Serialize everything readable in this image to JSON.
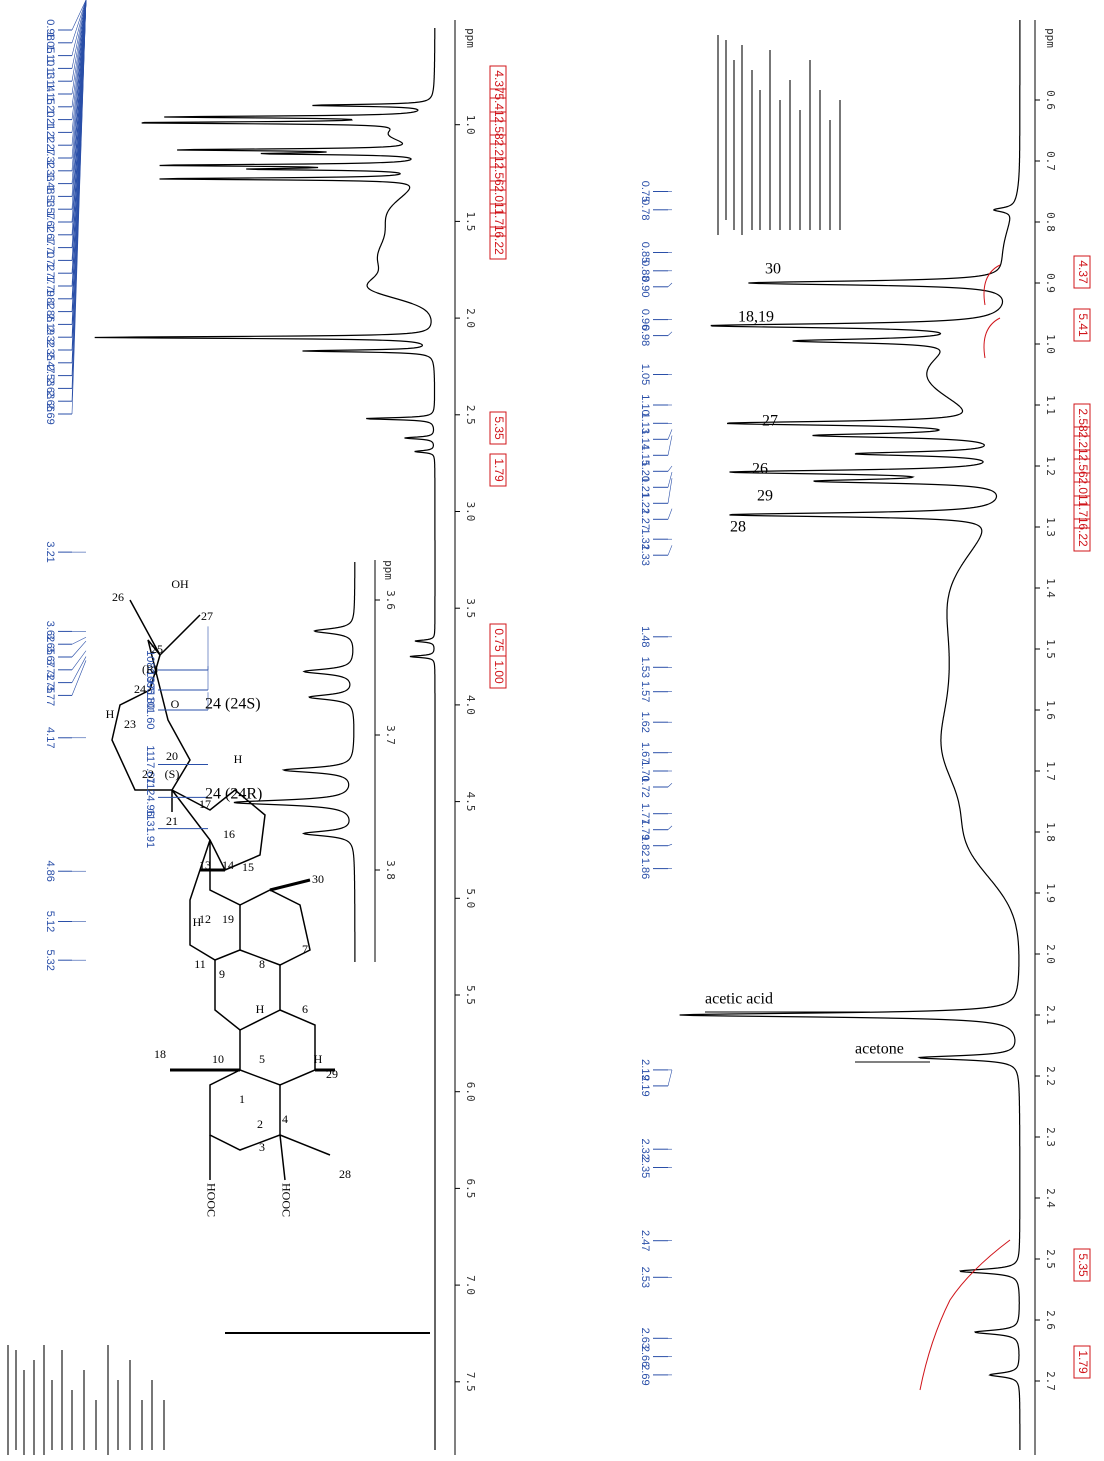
{
  "left_panel": {
    "axis_unit": "ppm",
    "ppm_ticks": [
      {
        "value": 1,
        "label": "1.0"
      },
      1.5,
      {
        "value": 2,
        "label": "2.0"
      },
      2.5,
      {
        "value": 3,
        "label": "3.0"
      },
      3.5,
      {
        "value": 4,
        "label": "4.0"
      },
      4.5,
      {
        "value": 5,
        "label": "5.0"
      },
      5.5,
      {
        "value": 6,
        "label": "6.0"
      },
      6.5,
      {
        "value": 7,
        "label": "7.0"
      },
      7.5
    ],
    "peak_list": [
      0.98,
      1.05,
      {
        "value": 1.1,
        "label": "1.10"
      },
      1.13,
      1.14,
      1.15,
      {
        "value": 1.2,
        "label": "1.20"
      },
      1.21,
      1.22,
      1.27,
      1.32,
      1.33,
      1.48,
      1.53,
      1.57,
      1.62,
      1.67,
      {
        "value": 1.7,
        "label": "1.70"
      },
      1.72,
      1.77,
      1.79,
      1.82,
      1.86,
      2.19,
      2.32,
      2.35,
      2.47,
      2.53,
      2.63,
      2.66,
      2.69,
      3.21,
      3.62,
      3.65,
      3.67,
      3.72,
      3.75,
      3.77,
      4.17,
      4.86,
      5.12,
      5.32
    ],
    "integrals": [
      "4.37",
      "5.41",
      "2.58",
      "2.21",
      "2.56",
      "2.01",
      "1.71",
      "6.22",
      "5.35",
      "1.79",
      "0.75",
      "1.00"
    ]
  },
  "inset": {
    "axis_unit": "ppm",
    "ppm_ticks": [
      3.6,
      3.7,
      3.8
    ],
    "hz_list": [
      1086.97,
      {
        "value": 1095.8,
        "label": "1095.80"
      },
      {
        "value": 1101.6,
        "label": "1101.60"
      },
      1117.67,
      1124.96,
      1131.91
    ],
    "annotations": [
      "24 (24S)",
      "24 (24R)"
    ]
  },
  "right_panel": {
    "axis_unit": "ppm",
    "ppm_ticks": [
      0.6,
      0.7,
      0.8,
      0.9,
      {
        "value": 1,
        "label": "1.0"
      },
      1.1,
      1.2,
      1.3,
      1.4,
      1.5,
      1.6,
      1.7,
      1.8,
      1.9,
      {
        "value": 2,
        "label": "2.0"
      },
      2.1,
      2.2,
      2.3,
      2.4,
      2.5,
      2.6,
      2.7
    ],
    "peak_list": [
      0.75,
      0.78,
      0.85,
      0.88,
      {
        "value": 0.9,
        "label": "0.90"
      },
      0.96,
      0.98,
      1.05,
      {
        "value": 1.1,
        "label": "1.10"
      },
      1.13,
      1.14,
      1.15,
      {
        "value": 1.2,
        "label": "1.20"
      },
      1.21,
      1.22,
      1.27,
      1.32,
      1.33,
      1.48,
      1.53,
      1.57,
      1.62,
      1.67,
      {
        "value": 1.7,
        "label": "1.70"
      },
      1.72,
      1.77,
      1.79,
      1.82,
      1.86,
      2.19,
      2.19,
      2.32,
      2.35,
      2.47,
      2.53,
      2.63,
      2.66,
      2.69
    ],
    "integrals": [
      "4.37",
      "5.41",
      "2.58",
      "2.21",
      "2.56",
      "2.01",
      "1.71",
      "6.22",
      "5.35",
      "1.79"
    ],
    "annotations": [
      "30",
      "18,19",
      "27",
      "26",
      "29",
      "28",
      "acetic acid",
      "acetone"
    ]
  },
  "molecule": {
    "labels": [
      "26",
      "OH",
      "27",
      "25",
      "(R)",
      "24",
      "O",
      "H",
      "23",
      "22",
      "20",
      "(S)",
      "21",
      "H",
      "17",
      "16",
      "15",
      "13",
      "14",
      "30",
      "H",
      "12",
      "19",
      "11",
      "9",
      "8",
      "7",
      "H",
      "6",
      "18",
      "10",
      "5",
      "H",
      "29",
      "1",
      "2",
      "3",
      "4",
      "HOOC",
      "HOOC",
      "28"
    ]
  }
}
